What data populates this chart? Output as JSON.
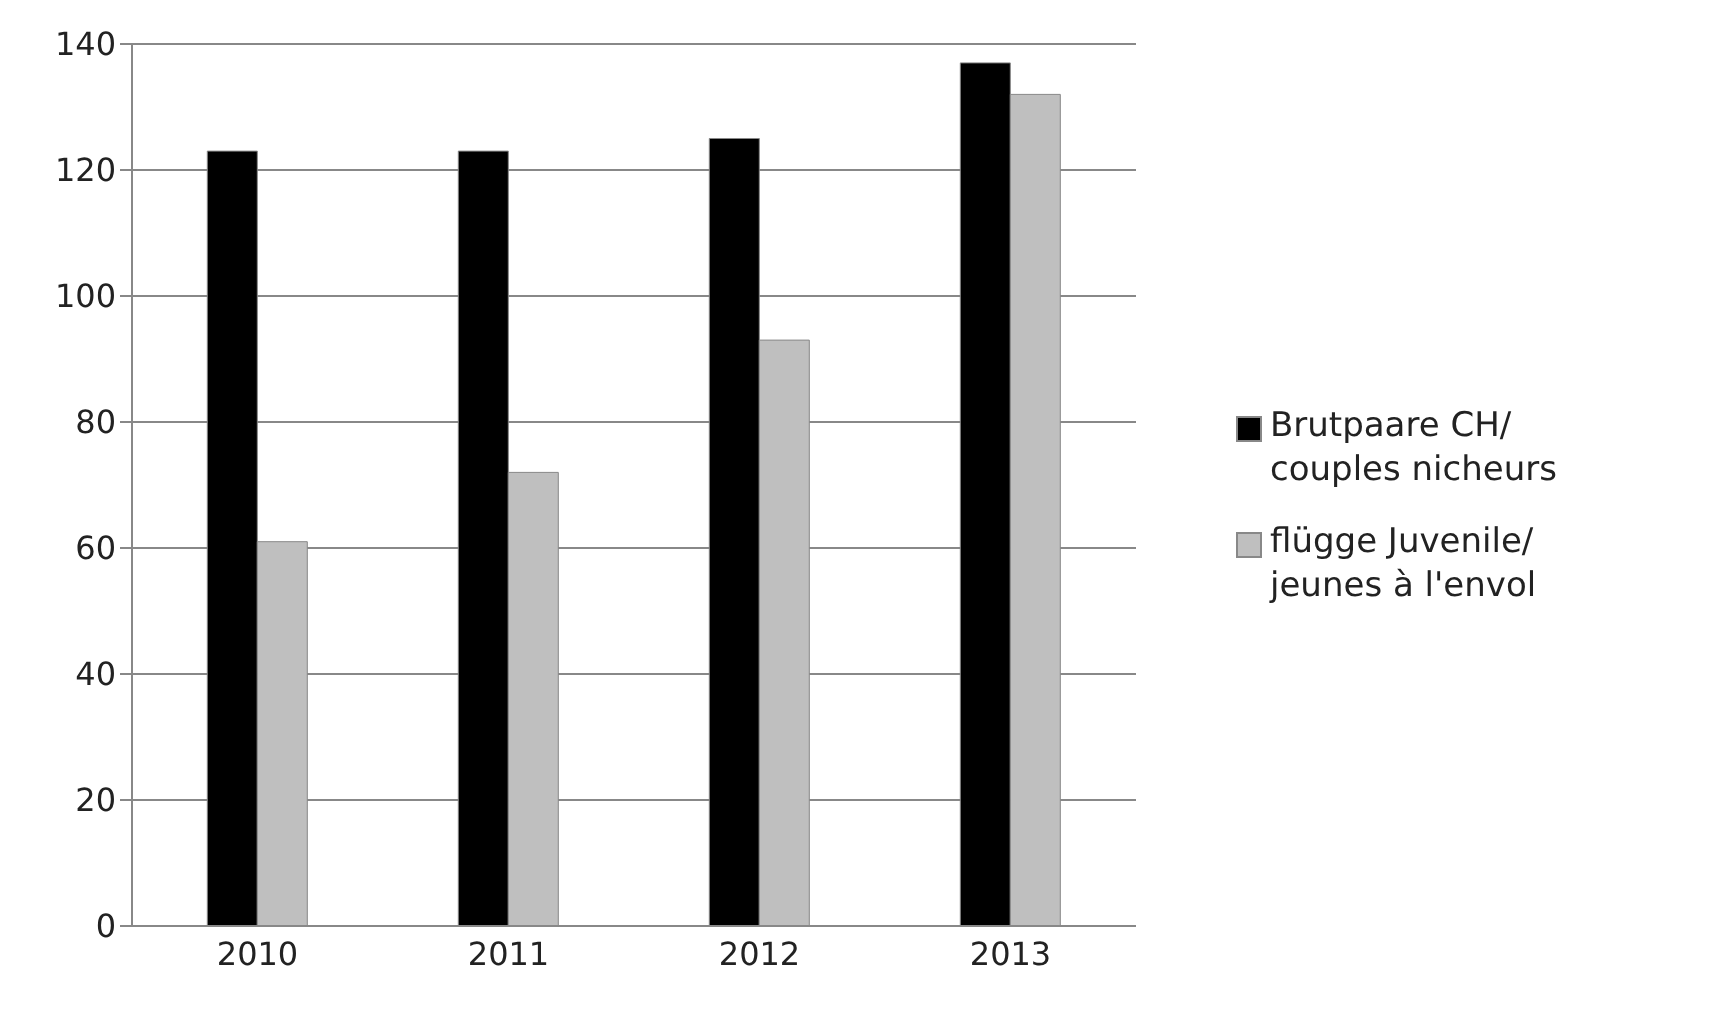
{
  "chart_data": {
    "type": "bar",
    "categories": [
      "2010",
      "2011",
      "2012",
      "2013"
    ],
    "series": [
      {
        "name": "Brutpaare CH/ couples nicheurs",
        "color": "#000000",
        "values": [
          123,
          123,
          125,
          137
        ]
      },
      {
        "name": "flügge Juvenile/ jeunes à l'envol",
        "color": "#bfbfbf",
        "values": [
          61,
          72,
          93,
          132
        ]
      }
    ],
    "ylim": [
      0,
      140
    ],
    "yticks": [
      0,
      20,
      40,
      60,
      80,
      100,
      120,
      140
    ],
    "grid": "y",
    "legend": "right"
  }
}
